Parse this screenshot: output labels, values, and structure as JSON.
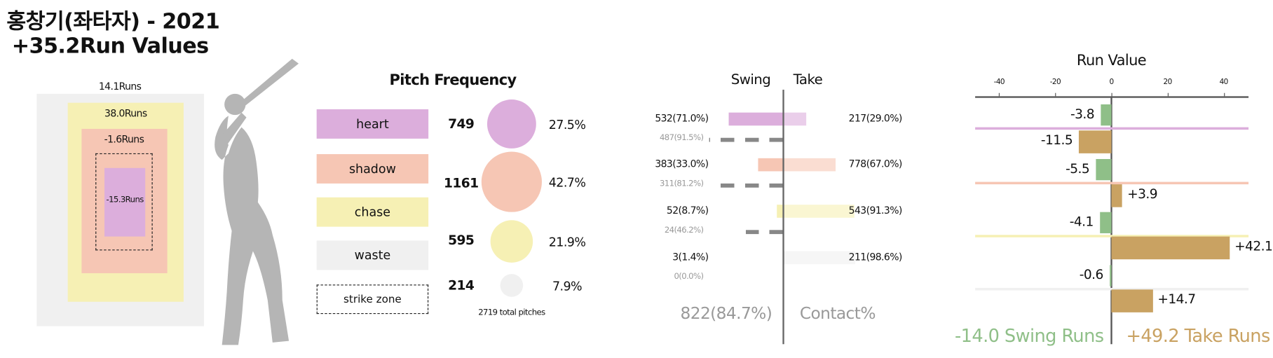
{
  "title": {
    "line1": "홍창기(좌타자) - 2021",
    "line2": "+35.2Run Values"
  },
  "zone": {
    "waste": "14.1Runs",
    "chase": "38.0Runs",
    "shadow": "-1.6Runs",
    "heart": "-15.3Runs"
  },
  "colors": {
    "heart": "#dcaedc",
    "shadow": "#f6c6b4",
    "chase": "#f6f0b4",
    "waste": "#f0f0f0",
    "swing": "#8fbf88",
    "take": "#c9a262"
  },
  "frequency": {
    "title": "Pitch Frequency",
    "rows": [
      {
        "label": "heart",
        "count": "749",
        "pct": "27.5%"
      },
      {
        "label": "shadow",
        "count": "1161",
        "pct": "42.7%"
      },
      {
        "label": "chase",
        "count": "595",
        "pct": "21.9%"
      },
      {
        "label": "waste",
        "count": "214",
        "pct": "7.9%"
      }
    ],
    "strike_zone_label": "strike zone",
    "total": "2719 total pitches"
  },
  "swing_take": {
    "swing_header": "Swing",
    "take_header": "Take",
    "rows": [
      {
        "swing": "532(71.0%)",
        "contact": "487(91.5%)",
        "take": "217(29.0%)",
        "swing_pct": 71.0,
        "take_pct": 29.0,
        "contact_pct": 91.5
      },
      {
        "swing": "383(33.0%)",
        "contact": "311(81.2%)",
        "take": "778(67.0%)",
        "swing_pct": 33.0,
        "take_pct": 67.0,
        "contact_pct": 81.2
      },
      {
        "swing": "52(8.7%)",
        "contact": "24(46.2%)",
        "take": "543(91.3%)",
        "swing_pct": 8.7,
        "take_pct": 91.3,
        "contact_pct": 46.2
      },
      {
        "swing": "3(1.4%)",
        "contact": "0(0.0%)",
        "take": "211(98.6%)",
        "swing_pct": 1.4,
        "take_pct": 98.6,
        "contact_pct": 0
      }
    ],
    "contact_total": "822(84.7%)",
    "contact_label": "Contact%"
  },
  "chart_data": {
    "type": "bar",
    "title": "Run Value",
    "categories": [
      "heart",
      "shadow",
      "chase",
      "waste"
    ],
    "xlim": [
      -48,
      50
    ],
    "ticks": [
      "-40",
      "-20",
      "0",
      "20",
      "40"
    ],
    "series": [
      {
        "name": "Swing Runs",
        "values": [
          -3.8,
          -5.5,
          -4.1,
          -0.6
        ],
        "labels": [
          "-3.8",
          "-5.5",
          "-4.1",
          "-0.6"
        ]
      },
      {
        "name": "Take Runs",
        "values": [
          -11.5,
          3.9,
          42.1,
          14.7
        ],
        "labels": [
          "-11.5",
          "+3.9",
          "+42.1",
          "+14.7"
        ]
      }
    ],
    "swing_total": "-14.0 Swing Runs",
    "take_total": "+49.2 Take Runs"
  }
}
